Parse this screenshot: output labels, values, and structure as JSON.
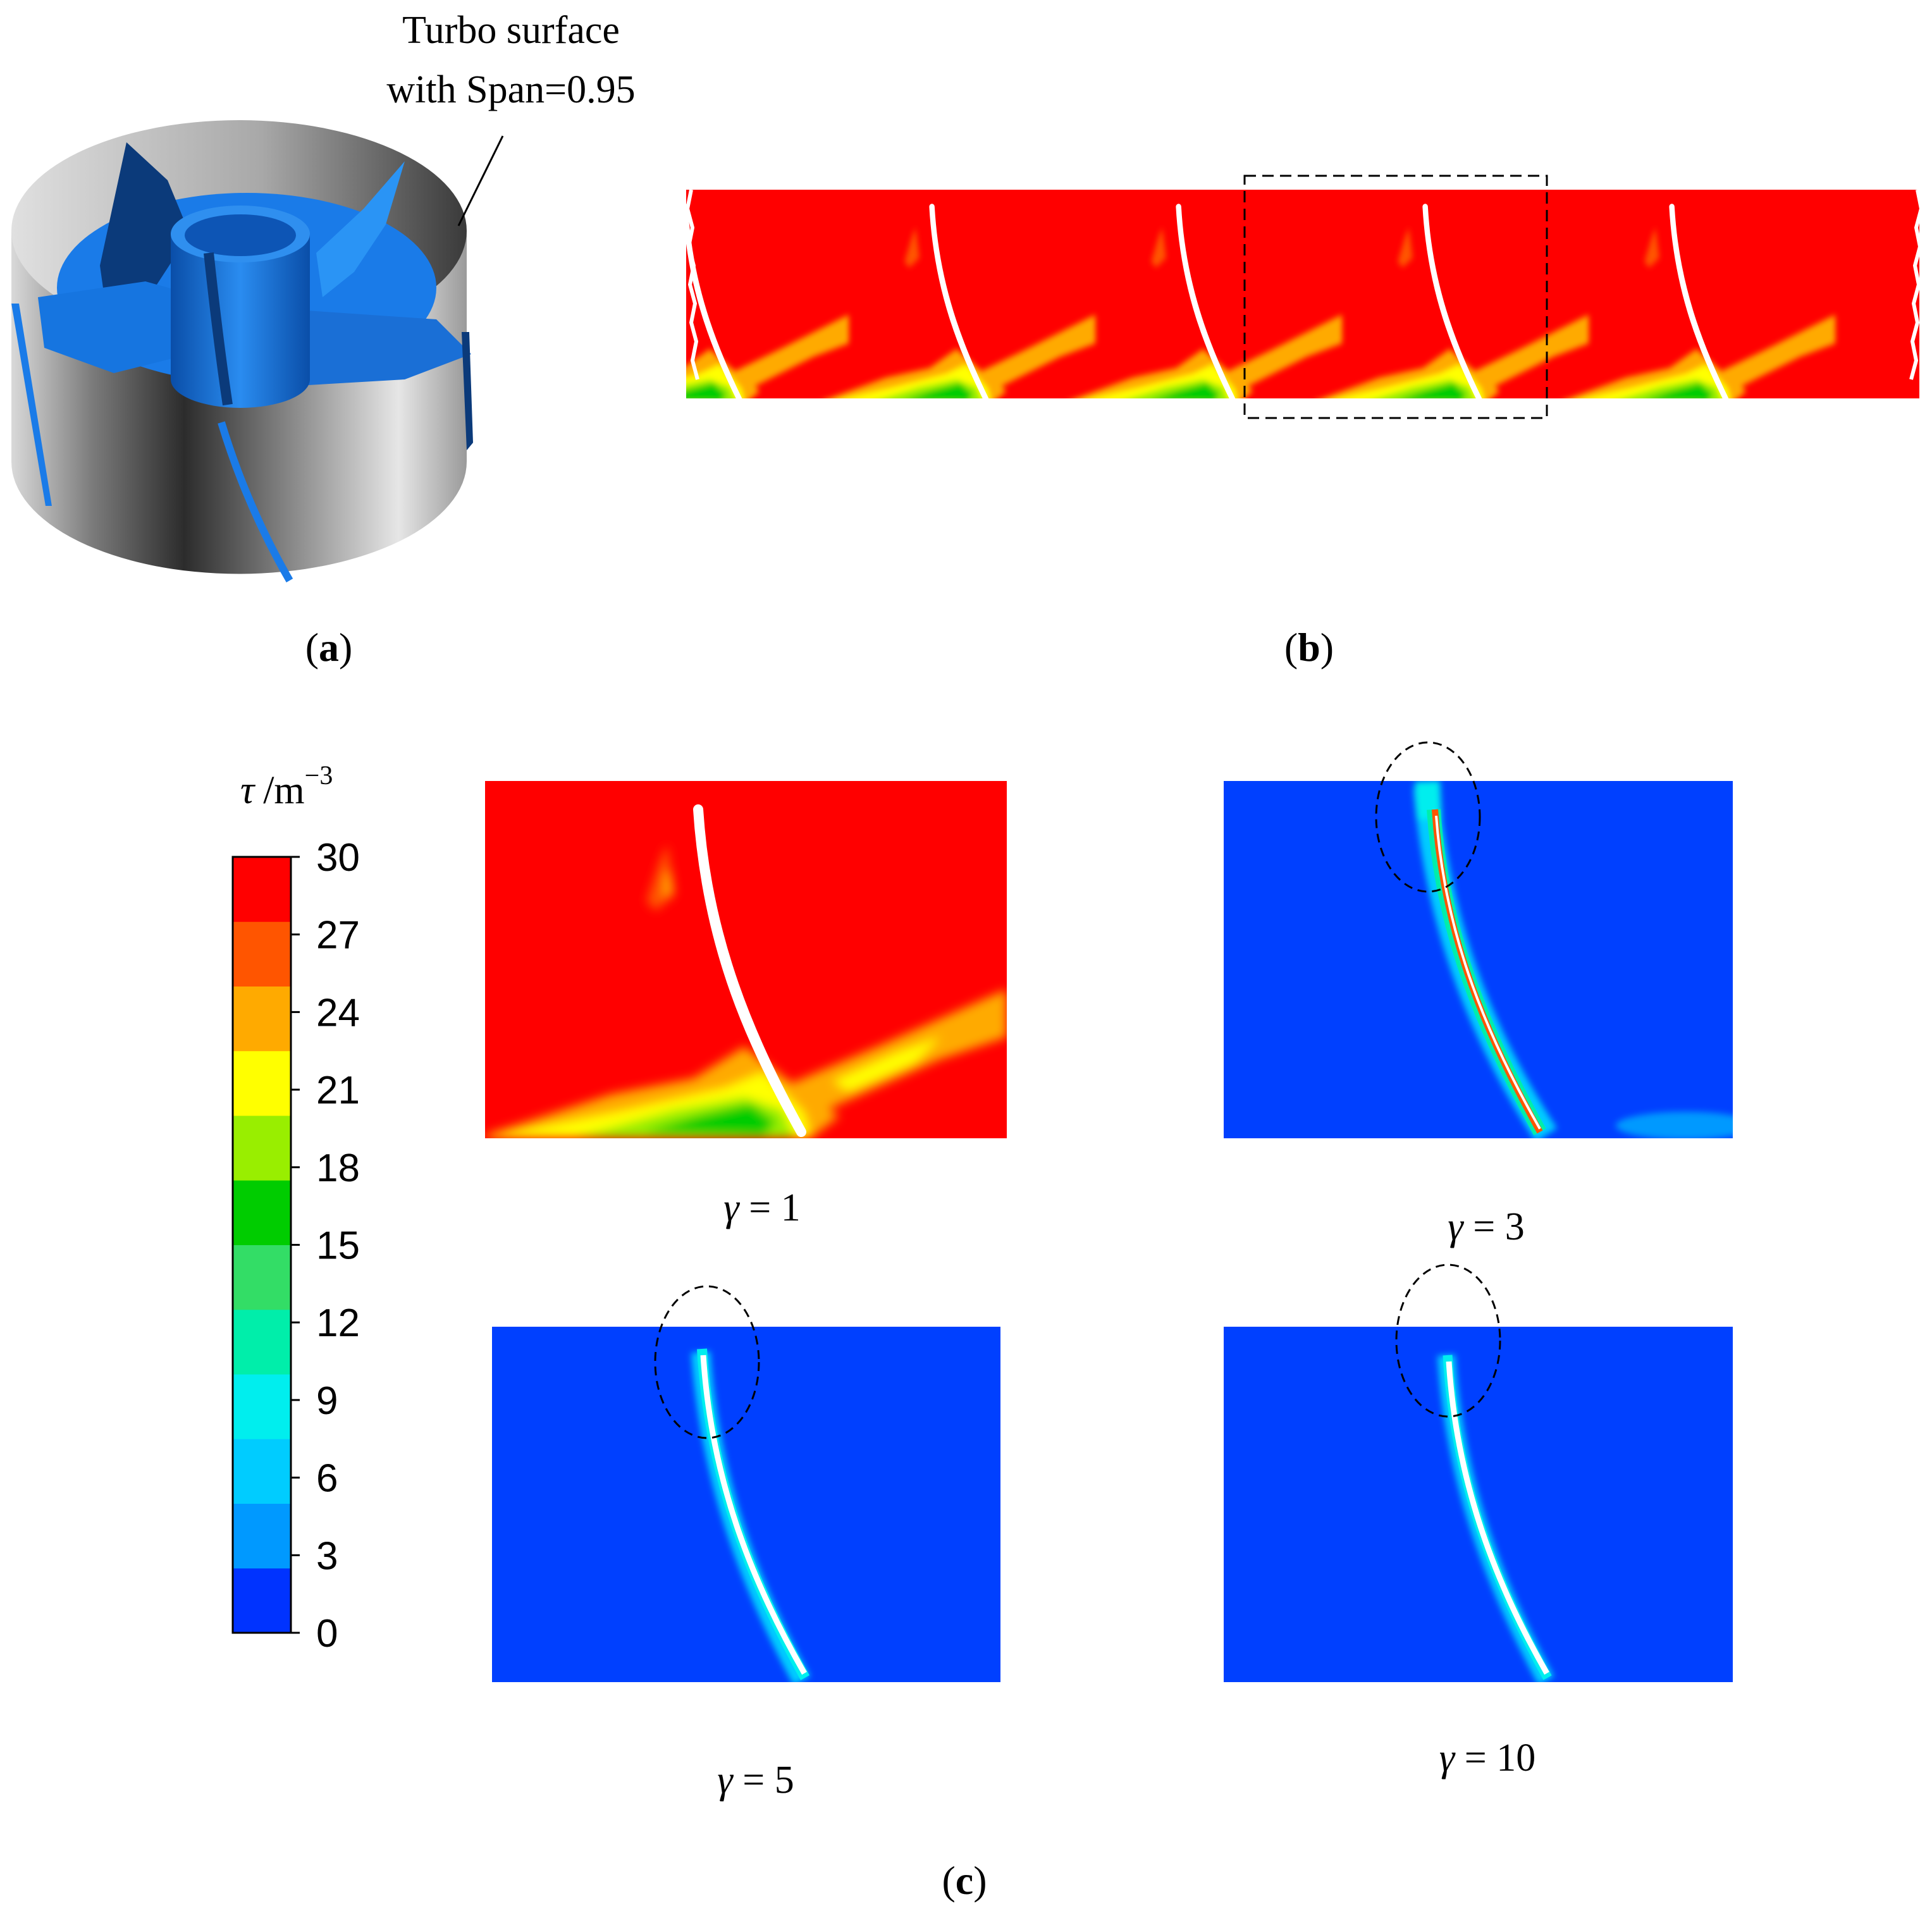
{
  "annotation": {
    "line1": "Turbo surface",
    "line2": "with Span=0.95"
  },
  "panel_labels": {
    "a": "a",
    "b": "b",
    "c": "c"
  },
  "colorbar": {
    "symbol": "τ",
    "unit": "/m",
    "exponent": "−3",
    "ticks": [
      "30",
      "27",
      "24",
      "21",
      "18",
      "15",
      "12",
      "9",
      "6",
      "3",
      "0"
    ],
    "levels": [
      "#0033FF",
      "#0099FF",
      "#00CCFF",
      "#00EEEE",
      "#00EEAA",
      "#33DD66",
      "#00CC00",
      "#99EE00",
      "#FFFF00",
      "#FFAA00",
      "#FF5500",
      "#FF0000"
    ]
  },
  "cases": [
    {
      "symbol": "γ",
      "eq": " = ",
      "value": "1"
    },
    {
      "symbol": "γ",
      "eq": " = ",
      "value": "3"
    },
    {
      "symbol": "γ",
      "eq": " = ",
      "value": "5"
    },
    {
      "symbol": "γ",
      "eq": " = ",
      "value": "10"
    }
  ],
  "colors": {
    "blade": "#1E88F0",
    "blade_dark": "#0B3A7A",
    "red": "#FF0000",
    "blue": "#0040FF"
  }
}
